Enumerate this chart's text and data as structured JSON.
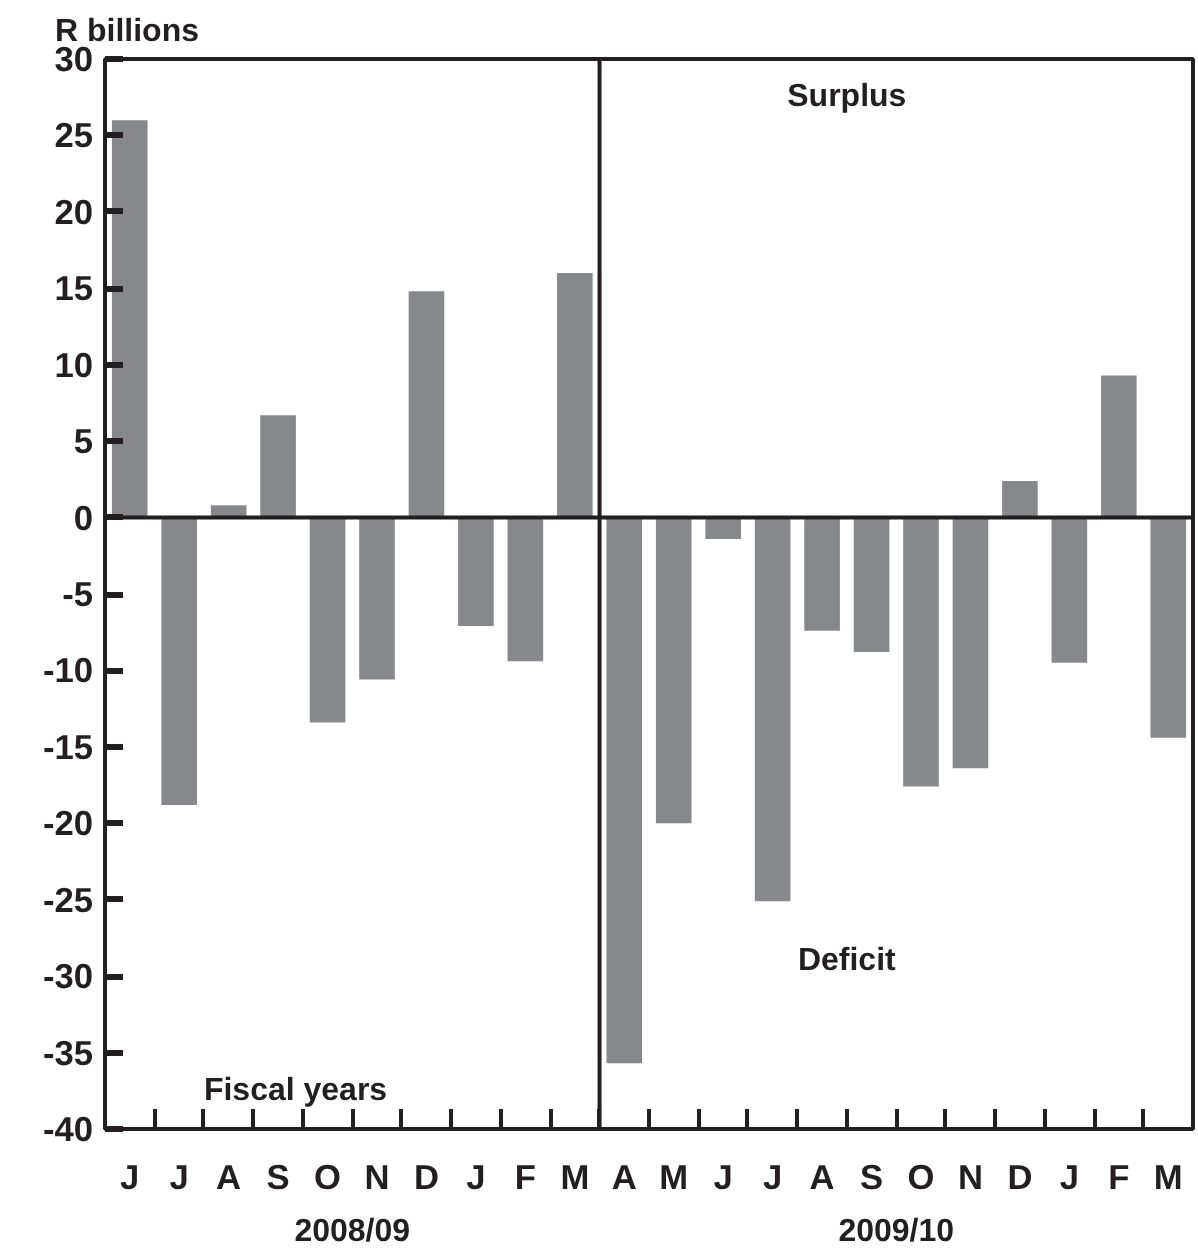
{
  "chart_data": {
    "type": "bar",
    "ylabel": "R billions",
    "categories": [
      "J",
      "J",
      "A",
      "S",
      "O",
      "N",
      "D",
      "J",
      "F",
      "M",
      "A",
      "M",
      "J",
      "J",
      "A",
      "S",
      "O",
      "N",
      "D",
      "J",
      "F",
      "M"
    ],
    "values": [
      26,
      -18.8,
      0.8,
      6.7,
      -13.4,
      -10.6,
      14.8,
      -7.1,
      -9.4,
      16,
      -35.7,
      -20,
      -1.4,
      -25.1,
      -7.4,
      -8.8,
      -17.6,
      -16.4,
      2.4,
      -9.5,
      9.3,
      -14.4
    ],
    "color": "#87888c",
    "ylim": [
      -40,
      30
    ],
    "yticks": [
      -40,
      -35,
      -30,
      -25,
      -20,
      -15,
      -10,
      -5,
      0,
      5,
      10,
      15,
      20,
      25,
      30
    ],
    "annotations": [
      "Surplus",
      "Deficit",
      "Fiscal years",
      "2008/09",
      "2009/10"
    ]
  }
}
